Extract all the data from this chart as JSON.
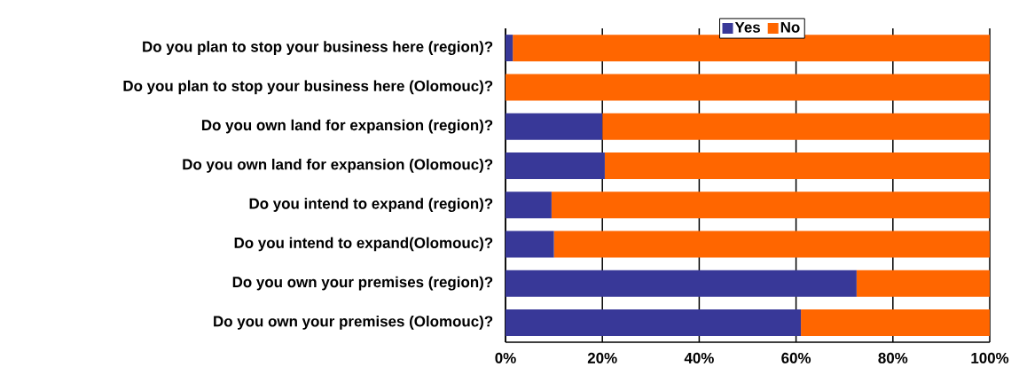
{
  "chart_data": {
    "type": "bar",
    "orientation": "horizontal",
    "stacked": true,
    "categories": [
      "Do you plan to stop your business here (region)?",
      "Do you plan to stop your business here (Olomouc)?",
      "Do you own land for expansion (region)?",
      "Do you own land for expansion (Olomouc)?",
      "Do you intend to expand (region)?",
      "Do you intend to expand(Olomouc)?",
      "Do you own your premises (region)?",
      "Do you own your premises (Olomouc)?"
    ],
    "series": [
      {
        "name": "Yes",
        "color": "#383898",
        "values": [
          1.5,
          0,
          20,
          20.5,
          9.5,
          10,
          72.5,
          61
        ]
      },
      {
        "name": "No",
        "color": "#ff6600",
        "values": [
          98.5,
          100,
          80,
          79.5,
          90.5,
          90,
          27.5,
          39
        ]
      }
    ],
    "xlim": [
      0,
      100
    ],
    "xticks": [
      {
        "value": 0,
        "label": "0%"
      },
      {
        "value": 20,
        "label": "20%"
      },
      {
        "value": 40,
        "label": "40%"
      },
      {
        "value": 60,
        "label": "60%"
      },
      {
        "value": 80,
        "label": "80%"
      },
      {
        "value": 100,
        "label": "100%"
      }
    ],
    "grid": "x",
    "legend": "top"
  }
}
